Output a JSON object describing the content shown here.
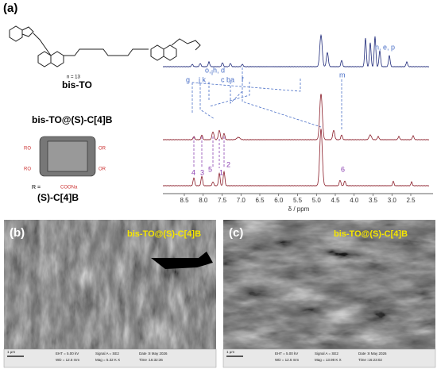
{
  "panel_a": {
    "label": "(a)",
    "molecule_top": {
      "name": "bis-TO",
      "n": "n = 13"
    },
    "complex": "bis-TO@(S)-C[4]B",
    "host": {
      "name": "(S)-C[4]B",
      "r_prefix": "R =",
      "group": "COONa"
    },
    "nmr": {
      "axis_label": "δ / ppm",
      "ticks": [
        "8.5",
        "8.0",
        "7.5",
        "7.0",
        "6.5",
        "6.0",
        "5.5",
        "5.0",
        "4.5",
        "4.0",
        "3.5",
        "3.0",
        "2.5"
      ],
      "guest_peaks": [
        "g",
        "j k",
        "i",
        "o, h, d",
        "c b",
        "a",
        "f",
        "m",
        "n, e, p"
      ],
      "host_peaks": [
        "4",
        "3",
        "5",
        "1",
        "2",
        "6"
      ]
    }
  },
  "panel_b": {
    "label": "(b)",
    "overlay": "bis-TO@(S)-C[4]B",
    "info": {
      "scale": "1 μm",
      "eht": "EHT = 5.00 kV",
      "wd": "WD = 12.6 mm",
      "signal": "Signal A = SE2",
      "mag": "Mag = 5.32 K X",
      "date": "Date :8 May 2026",
      "time": "Time :16:32:36"
    }
  },
  "panel_c": {
    "label": "(c)",
    "overlay": "bis-TO@(S)-C[4]B",
    "info": {
      "scale": "1 μm",
      "eht": "EHT = 5.00 kV",
      "wd": "WD = 12.6 mm",
      "signal": "Signal A = SE2",
      "mag": "Mag = 13.98 K X",
      "date": "Date :8 May 2026",
      "time": "Time :16:23:02"
    }
  }
}
